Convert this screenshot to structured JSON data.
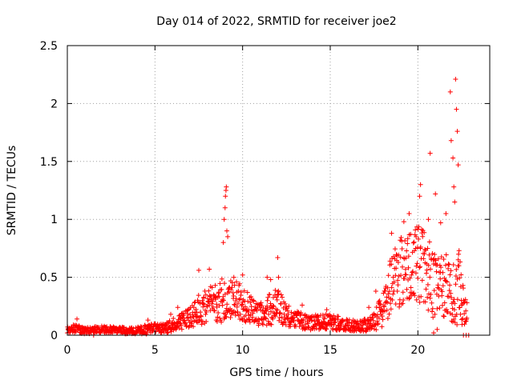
{
  "chart_data": {
    "type": "scatter",
    "title": "Day 014 of 2022, SRMTID for receiver joe2",
    "xlabel": "GPS time / hours",
    "ylabel": "SRMTID / TECUs",
    "xlim": [
      0,
      24.1
    ],
    "ylim": [
      0,
      2.5
    ],
    "x_ticks": [
      0,
      5,
      10,
      15,
      20
    ],
    "y_ticks": [
      0,
      0.5,
      1,
      1.5,
      2,
      2.5
    ],
    "x_tick_labels": [
      "0",
      "5",
      "10",
      "15",
      "20"
    ],
    "y_tick_labels": [
      "0",
      "0.5",
      "1",
      "1.5",
      "2",
      "2.5"
    ],
    "grid": true,
    "marker": "+",
    "marker_color": "#ff0000",
    "series": [
      {
        "name": "SRMTID",
        "envelope_hours": [
          0,
          0.5,
          1,
          2,
          3,
          4,
          4.5,
          5,
          5.5,
          6,
          6.5,
          7,
          7.5,
          8,
          8.5,
          9,
          9.5,
          10,
          10.5,
          11,
          11.5,
          12,
          12.5,
          13,
          13.5,
          14,
          14.5,
          15,
          15.5,
          16,
          16.5,
          17,
          17.5,
          18,
          18.5,
          19,
          19.5,
          20,
          20.5,
          21,
          21.5,
          22,
          22.5,
          22.8
        ],
        "envelope_mid": [
          0.05,
          0.06,
          0.04,
          0.05,
          0.04,
          0.04,
          0.05,
          0.06,
          0.06,
          0.09,
          0.13,
          0.15,
          0.22,
          0.25,
          0.28,
          0.3,
          0.3,
          0.27,
          0.22,
          0.18,
          0.22,
          0.25,
          0.18,
          0.14,
          0.12,
          0.11,
          0.12,
          0.12,
          0.1,
          0.09,
          0.08,
          0.09,
          0.12,
          0.25,
          0.45,
          0.55,
          0.6,
          0.62,
          0.55,
          0.4,
          0.38,
          0.45,
          0.35,
          0.1
        ],
        "envelope_spread": [
          0.03,
          0.04,
          0.03,
          0.03,
          0.03,
          0.03,
          0.04,
          0.04,
          0.05,
          0.06,
          0.08,
          0.09,
          0.13,
          0.15,
          0.18,
          0.2,
          0.18,
          0.16,
          0.12,
          0.1,
          0.14,
          0.15,
          0.1,
          0.08,
          0.07,
          0.07,
          0.07,
          0.07,
          0.06,
          0.05,
          0.05,
          0.06,
          0.08,
          0.18,
          0.25,
          0.3,
          0.32,
          0.33,
          0.32,
          0.28,
          0.3,
          0.35,
          0.3,
          0.08
        ],
        "peaks": [
          {
            "x": 0.55,
            "y": 0.14
          },
          {
            "x": 4.6,
            "y": 0.13
          },
          {
            "x": 5.9,
            "y": 0.18
          },
          {
            "x": 6.3,
            "y": 0.24
          },
          {
            "x": 7.5,
            "y": 0.56
          },
          {
            "x": 8.1,
            "y": 0.57
          },
          {
            "x": 8.9,
            "y": 0.8
          },
          {
            "x": 8.95,
            "y": 1.0
          },
          {
            "x": 9.0,
            "y": 1.1
          },
          {
            "x": 9.02,
            "y": 1.2
          },
          {
            "x": 9.05,
            "y": 1.25
          },
          {
            "x": 9.07,
            "y": 1.28
          },
          {
            "x": 9.1,
            "y": 0.9
          },
          {
            "x": 9.15,
            "y": 0.85
          },
          {
            "x": 9.5,
            "y": 0.5
          },
          {
            "x": 10.0,
            "y": 0.52
          },
          {
            "x": 11.4,
            "y": 0.5
          },
          {
            "x": 11.6,
            "y": 0.48
          },
          {
            "x": 12.0,
            "y": 0.67
          },
          {
            "x": 12.05,
            "y": 0.5
          },
          {
            "x": 13.4,
            "y": 0.26
          },
          {
            "x": 14.8,
            "y": 0.22
          },
          {
            "x": 17.2,
            "y": 0.24
          },
          {
            "x": 17.6,
            "y": 0.38
          },
          {
            "x": 18.5,
            "y": 0.88
          },
          {
            "x": 19.2,
            "y": 0.98
          },
          {
            "x": 19.5,
            "y": 1.05
          },
          {
            "x": 19.9,
            "y": 0.85
          },
          {
            "x": 20.1,
            "y": 1.2
          },
          {
            "x": 20.15,
            "y": 1.3
          },
          {
            "x": 20.6,
            "y": 1.0
          },
          {
            "x": 20.7,
            "y": 1.57
          },
          {
            "x": 21.0,
            "y": 1.22
          },
          {
            "x": 21.3,
            "y": 0.97
          },
          {
            "x": 21.6,
            "y": 1.05
          },
          {
            "x": 21.85,
            "y": 2.1
          },
          {
            "x": 21.9,
            "y": 1.68
          },
          {
            "x": 22.0,
            "y": 1.53
          },
          {
            "x": 22.05,
            "y": 1.28
          },
          {
            "x": 22.1,
            "y": 1.15
          },
          {
            "x": 22.15,
            "y": 2.21
          },
          {
            "x": 22.2,
            "y": 1.95
          },
          {
            "x": 22.25,
            "y": 1.76
          },
          {
            "x": 22.3,
            "y": 1.47
          },
          {
            "x": 22.35,
            "y": 0.73
          },
          {
            "x": 22.5,
            "y": 0.26
          },
          {
            "x": 22.8,
            "y": 0.28
          },
          {
            "x": 22.6,
            "y": 0.0
          },
          {
            "x": 22.75,
            "y": 0.0
          },
          {
            "x": 22.9,
            "y": 0.0
          },
          {
            "x": 21.1,
            "y": 0.05
          },
          {
            "x": 20.9,
            "y": 0.02
          },
          {
            "x": 1.5,
            "y": 0.0
          }
        ]
      }
    ]
  }
}
